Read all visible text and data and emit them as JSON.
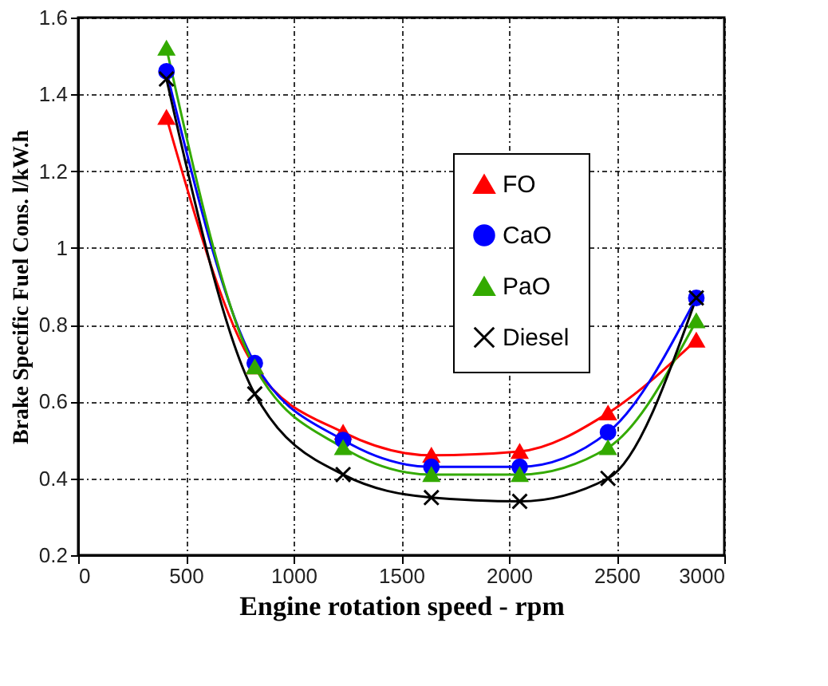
{
  "chart_data": {
    "type": "line",
    "xlabel": "Engine rotation speed - rpm",
    "ylabel": "Brake Specific Fuel Cons. l/kW.h",
    "x": [
      410,
      820,
      1230,
      1640,
      2050,
      2460,
      2870
    ],
    "series": [
      {
        "name": "FO",
        "color": "#ff0000",
        "marker": "triangle",
        "values": [
          1.34,
          0.69,
          0.52,
          0.46,
          0.47,
          0.57,
          0.76
        ]
      },
      {
        "name": "CaO",
        "color": "#0000ff",
        "marker": "circle",
        "values": [
          1.46,
          0.7,
          0.5,
          0.43,
          0.43,
          0.52,
          0.87
        ]
      },
      {
        "name": "PaO",
        "color": "#33aa00",
        "marker": "triangle",
        "values": [
          1.52,
          0.69,
          0.48,
          0.41,
          0.41,
          0.48,
          0.81
        ]
      },
      {
        "name": "Diesel",
        "color": "#000000",
        "marker": "cross",
        "values": [
          1.44,
          0.62,
          0.41,
          0.35,
          0.34,
          0.4,
          0.87
        ]
      }
    ],
    "xlim": [
      0,
      3000
    ],
    "xticks": [
      0,
      500,
      1000,
      1500,
      2000,
      2500,
      3000
    ],
    "ylim": [
      0.2,
      1.6
    ],
    "yticks": [
      0.2,
      0.4,
      0.6,
      0.8,
      1,
      1.2,
      1.4,
      1.6
    ],
    "grid": true,
    "legend": "top right",
    "line_style": "solid"
  }
}
